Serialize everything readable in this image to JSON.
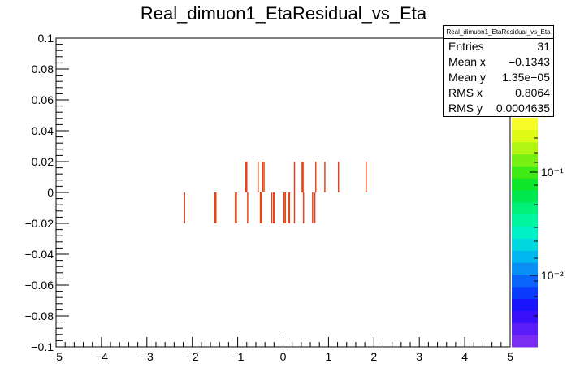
{
  "chart_data": {
    "type": "heatmap",
    "title": "Real_dimuon1_EtaResidual_vs_Eta",
    "xlabel": "",
    "ylabel": "",
    "xlim": [
      -5,
      5
    ],
    "ylim": [
      -0.1,
      0.1
    ],
    "x_ticks": [
      "−5",
      "−4",
      "−3",
      "−2",
      "−1",
      "0",
      "1",
      "2",
      "3",
      "4",
      "5"
    ],
    "y_ticks": [
      "−0.1",
      "−0.08",
      "−0.06",
      "−0.04",
      "−0.02",
      "0",
      "0.02",
      "0.04",
      "0.06",
      "0.08",
      "0.1"
    ],
    "colorbar_labels": [
      "10⁻¹",
      "10⁻²"
    ],
    "cell_color": "#e8441a",
    "cells": [
      {
        "x": -2.17,
        "y": -0.01
      },
      {
        "x": -1.5,
        "y": -0.01
      },
      {
        "x": -1.48,
        "y": -0.01
      },
      {
        "x": -1.05,
        "y": -0.01
      },
      {
        "x": -1.03,
        "y": -0.01
      },
      {
        "x": -0.78,
        "y": -0.01
      },
      {
        "x": -0.5,
        "y": -0.01
      },
      {
        "x": -0.48,
        "y": -0.01
      },
      {
        "x": -0.25,
        "y": -0.01
      },
      {
        "x": -0.21,
        "y": -0.01
      },
      {
        "x": -0.2,
        "y": -0.01
      },
      {
        "x": 0.02,
        "y": -0.01
      },
      {
        "x": 0.05,
        "y": -0.01
      },
      {
        "x": 0.12,
        "y": -0.01
      },
      {
        "x": 0.14,
        "y": -0.01
      },
      {
        "x": 0.25,
        "y": -0.01
      },
      {
        "x": 0.45,
        "y": -0.01
      },
      {
        "x": 0.65,
        "y": -0.01
      },
      {
        "x": 0.7,
        "y": -0.01
      },
      {
        "x": -0.82,
        "y": 0.01
      },
      {
        "x": -0.8,
        "y": 0.01
      },
      {
        "x": -0.55,
        "y": 0.01
      },
      {
        "x": -0.45,
        "y": 0.01
      },
      {
        "x": -0.42,
        "y": 0.01
      },
      {
        "x": 0.25,
        "y": 0.01
      },
      {
        "x": 0.42,
        "y": 0.01
      },
      {
        "x": 0.44,
        "y": 0.01
      },
      {
        "x": 0.72,
        "y": 0.01
      },
      {
        "x": 0.92,
        "y": 0.01
      },
      {
        "x": 1.22,
        "y": 0.01
      },
      {
        "x": 1.83,
        "y": 0.01
      }
    ],
    "colorbar_colors": [
      "#7a2cf2",
      "#5a1cf7",
      "#3a10fb",
      "#1a14fc",
      "#0a3cfc",
      "#0a64fa",
      "#0a90f4",
      "#00b6ee",
      "#00d8e0",
      "#00f0c8",
      "#00f5a0",
      "#00f078",
      "#00e850",
      "#10e62c",
      "#40ea14",
      "#78f014",
      "#b0f514",
      "#dcfa14",
      "#f5fa28"
    ]
  },
  "stats": {
    "title": "Real_dimuon1_EtaResidual_vs_Eta",
    "rows": [
      {
        "label": "Entries",
        "value": "31"
      },
      {
        "label": "Mean x",
        "value": "−0.1343"
      },
      {
        "label": "Mean y",
        "value": "1.35e−05"
      },
      {
        "label": "RMS x",
        "value": "0.8064"
      },
      {
        "label": "RMS y",
        "value": "0.0004635"
      }
    ]
  }
}
